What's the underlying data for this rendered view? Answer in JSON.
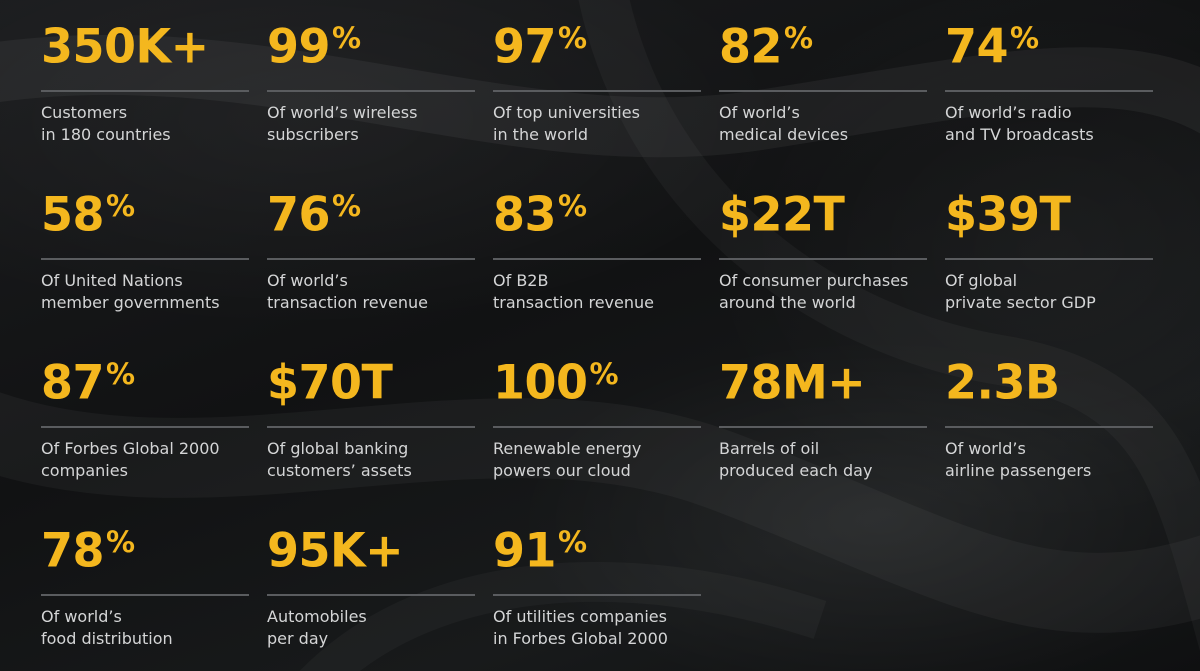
{
  "colors": {
    "accent": "#f4b71e",
    "text": "#d4d5d6",
    "rule": "#5a5c5f",
    "background": "#121314"
  },
  "stats": [
    {
      "id": "customers",
      "value": "350K+",
      "suffix": "",
      "line1": "Customers",
      "line2": "in 180 countries"
    },
    {
      "id": "wireless",
      "value": "99",
      "suffix": "%",
      "line1": "Of world’s wireless",
      "line2": "subscribers"
    },
    {
      "id": "universities",
      "value": "97",
      "suffix": "%",
      "line1": "Of top universities",
      "line2": "in the world"
    },
    {
      "id": "medical",
      "value": "82",
      "suffix": "%",
      "line1": "Of world’s",
      "line2": "medical devices"
    },
    {
      "id": "broadcasts",
      "value": "74",
      "suffix": "%",
      "line1": "Of world’s radio",
      "line2": "and TV broadcasts"
    },
    {
      "id": "un",
      "value": "58",
      "suffix": "%",
      "line1": "Of United Nations",
      "line2": "member governments"
    },
    {
      "id": "transaction",
      "value": "76",
      "suffix": "%",
      "line1": "Of world’s",
      "line2": "transaction revenue"
    },
    {
      "id": "b2b",
      "value": "83",
      "suffix": "%",
      "line1": "Of B2B",
      "line2": "transaction revenue"
    },
    {
      "id": "consumer",
      "value": "$22T",
      "suffix": "",
      "line1": "Of consumer purchases",
      "line2": "around the world"
    },
    {
      "id": "gdp",
      "value": "$39T",
      "suffix": "",
      "line1": "Of global",
      "line2": "private sector GDP"
    },
    {
      "id": "forbes",
      "value": "87",
      "suffix": "%",
      "line1": "Of Forbes Global 2000",
      "line2": "companies"
    },
    {
      "id": "banking",
      "value": "$70T",
      "suffix": "",
      "line1": "Of global banking",
      "line2": "customers’ assets"
    },
    {
      "id": "renewable",
      "value": "100",
      "suffix": "%",
      "line1": "Renewable energy",
      "line2": "powers our cloud"
    },
    {
      "id": "oil",
      "value": "78M+",
      "suffix": "",
      "line1": "Barrels of oil",
      "line2": "produced each day"
    },
    {
      "id": "airline",
      "value": "2.3B",
      "suffix": "",
      "line1": "Of world’s",
      "line2": "airline passengers"
    },
    {
      "id": "food",
      "value": "78",
      "suffix": "%",
      "line1": "Of world’s",
      "line2": "food distribution"
    },
    {
      "id": "automobiles",
      "value": "95K+",
      "suffix": "",
      "line1": "Automobiles",
      "line2": "per day"
    },
    {
      "id": "utilities",
      "value": "91",
      "suffix": "%",
      "line1": "Of utilities companies",
      "line2": "in Forbes Global 2000"
    }
  ]
}
